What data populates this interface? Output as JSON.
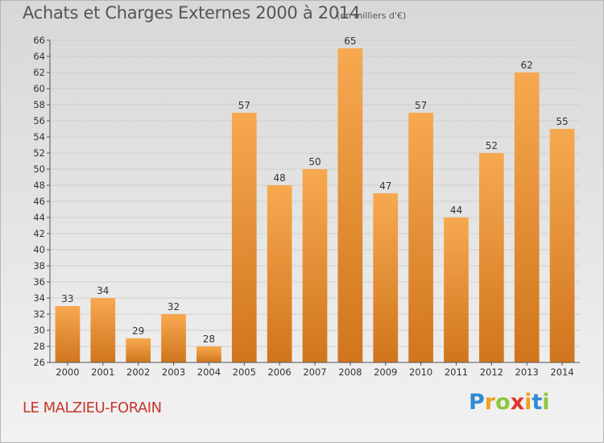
{
  "header": {
    "title": "Achats et Charges Externes 2000 à 2014",
    "subtitle": "(en milliers d'€)"
  },
  "footer": {
    "commune": "LE MALZIEU-FORAIN",
    "logo_letters": [
      {
        "ch": "P",
        "color": "#2e8bd6"
      },
      {
        "ch": "r",
        "color": "#f0a020"
      },
      {
        "ch": "o",
        "color": "#8cc63f"
      },
      {
        "ch": "x",
        "color": "#e2332a"
      },
      {
        "ch": "i",
        "color": "#f0a020"
      },
      {
        "ch": "t",
        "color": "#2e8bd6"
      },
      {
        "ch": "i",
        "color": "#8cc63f"
      }
    ]
  },
  "colors": {
    "bar_top": "#f7a950",
    "bar_bottom": "#d0751d",
    "grid": "#cfcfcf",
    "axis_text": "#333333",
    "commune_text": "#c8372d"
  },
  "chart_data": {
    "type": "bar",
    "categories": [
      "2000",
      "2001",
      "2002",
      "2003",
      "2004",
      "2005",
      "2006",
      "2007",
      "2008",
      "2009",
      "2010",
      "2011",
      "2012",
      "2013",
      "2014"
    ],
    "values": [
      33,
      34,
      29,
      32,
      28,
      57,
      48,
      50,
      65,
      47,
      57,
      44,
      52,
      62,
      55
    ],
    "title": "Achats et Charges Externes 2000 à 2014",
    "subtitle": "(en milliers d'€)",
    "xlabel": "",
    "ylabel": "",
    "ylim": [
      26,
      66
    ],
    "yticks": [
      26,
      28,
      30,
      32,
      34,
      36,
      38,
      40,
      42,
      44,
      46,
      48,
      50,
      52,
      54,
      56,
      58,
      60,
      62,
      64,
      66
    ],
    "grid": true,
    "data_labels": true
  }
}
